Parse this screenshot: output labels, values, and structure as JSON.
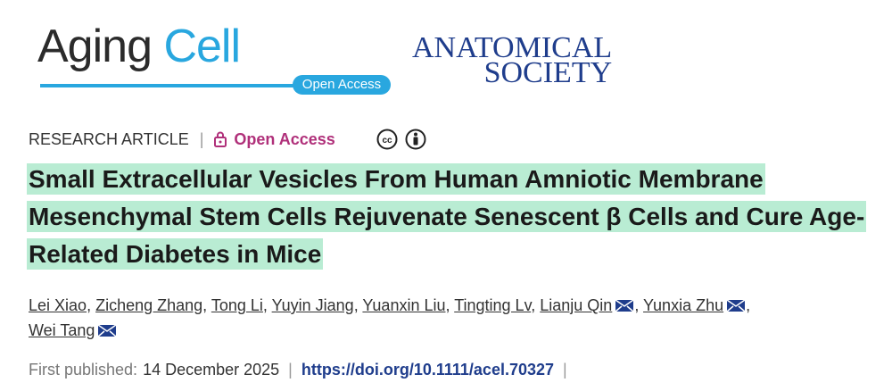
{
  "header": {
    "journal": [
      "Aging",
      "Cell"
    ],
    "journal_badge": "Open Access",
    "society": [
      "ANATOMICAL",
      "SOCIETY"
    ]
  },
  "article": {
    "type": "RESEARCH ARTICLE",
    "access": "Open Access",
    "title": "Small Extracellular Vesicles From Human Amniotic Membrane Mesenchymal Stem Cells Rejuvenate Senescent β Cells and Cure Age-Related Diabetes in Mice",
    "authors": [
      {
        "name": "Lei Xiao",
        "email": false
      },
      {
        "name": "Zicheng Zhang",
        "email": false
      },
      {
        "name": "Tong Li",
        "email": false
      },
      {
        "name": "Yuyin Jiang",
        "email": false
      },
      {
        "name": "Yuanxin Liu",
        "email": false
      },
      {
        "name": "Tingting Lv",
        "email": false
      },
      {
        "name": "Lianju Qin",
        "email": true
      },
      {
        "name": "Yunxia Zhu",
        "email": true
      },
      {
        "name": "Wei Tang",
        "email": true
      }
    ],
    "author_separator": ",",
    "published_label": "First published:",
    "published_date": "14 December 2025",
    "doi": "https://doi.org/10.1111/acel.70327",
    "separator": "|"
  }
}
